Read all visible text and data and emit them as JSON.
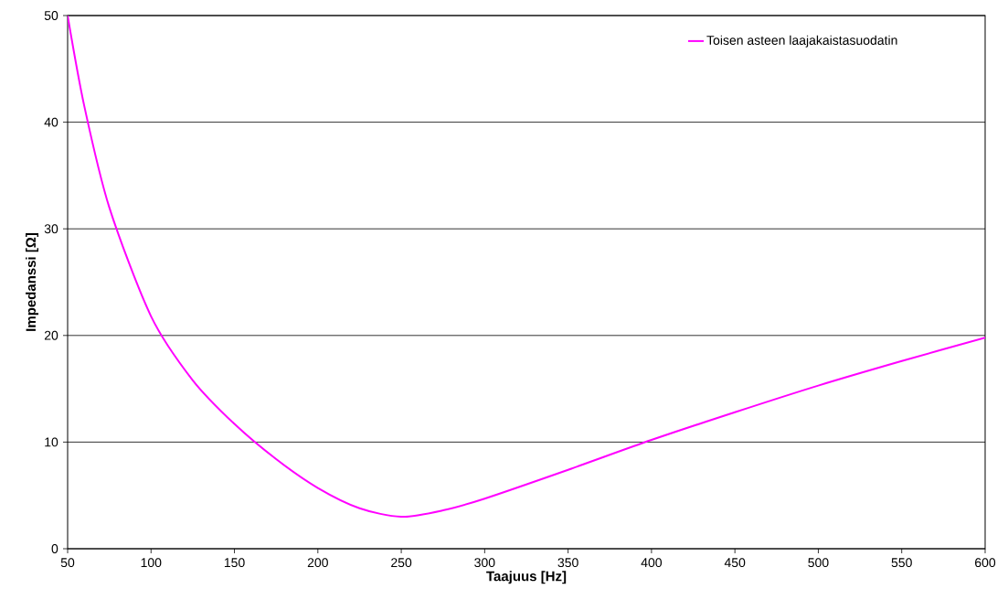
{
  "chart_data": {
    "type": "line",
    "xlabel": "Taajuus [Hz]",
    "ylabel": "Impedanssi [Ω]",
    "x": [
      50,
      60,
      75,
      100,
      125,
      150,
      175,
      200,
      225,
      250,
      275,
      300,
      350,
      400,
      450,
      500,
      550,
      600
    ],
    "series": [
      {
        "name": "Toisen asteen laajakaistasuodatin",
        "color": "#ff00ff",
        "values": [
          50,
          41.5,
          32,
          21.8,
          15.8,
          11.7,
          8.4,
          5.7,
          3.8,
          3.0,
          3.6,
          4.7,
          7.4,
          10.2,
          12.8,
          15.3,
          17.6,
          19.8
        ]
      }
    ],
    "xlim": [
      50,
      600
    ],
    "xticks": [
      50,
      100,
      150,
      200,
      250,
      300,
      350,
      400,
      450,
      500,
      550,
      600
    ],
    "ylim": [
      0,
      50
    ],
    "yticks": [
      0,
      10,
      20,
      30,
      40,
      50
    ],
    "grid": "y",
    "legend": "top right",
    "marker": "none",
    "line_style": "solid"
  }
}
